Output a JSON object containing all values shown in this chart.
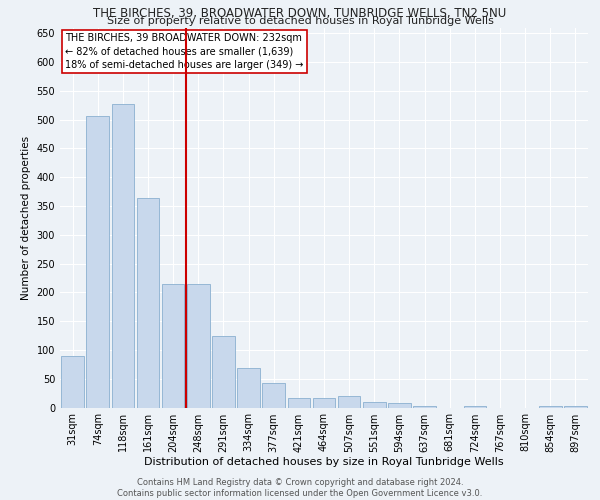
{
  "title": "THE BIRCHES, 39, BROADWATER DOWN, TUNBRIDGE WELLS, TN2 5NU",
  "subtitle": "Size of property relative to detached houses in Royal Tunbridge Wells",
  "xlabel": "Distribution of detached houses by size in Royal Tunbridge Wells",
  "ylabel": "Number of detached properties",
  "categories": [
    "31sqm",
    "74sqm",
    "118sqm",
    "161sqm",
    "204sqm",
    "248sqm",
    "291sqm",
    "334sqm",
    "377sqm",
    "421sqm",
    "464sqm",
    "507sqm",
    "551sqm",
    "594sqm",
    "637sqm",
    "681sqm",
    "724sqm",
    "767sqm",
    "810sqm",
    "854sqm",
    "897sqm"
  ],
  "values": [
    90,
    507,
    527,
    363,
    215,
    215,
    125,
    68,
    42,
    17,
    17,
    20,
    10,
    8,
    3,
    0,
    3,
    0,
    0,
    3,
    2
  ],
  "bar_color": "#c8d8ec",
  "bar_edge_color": "#8ab0d0",
  "marker_color": "#cc0000",
  "annotation_text": "THE BIRCHES, 39 BROADWATER DOWN: 232sqm\n← 82% of detached houses are smaller (1,639)\n18% of semi-detached houses are larger (349) →",
  "annotation_box_color": "#ffffff",
  "annotation_box_edge": "#cc0000",
  "ylim": [
    0,
    660
  ],
  "yticks": [
    0,
    50,
    100,
    150,
    200,
    250,
    300,
    350,
    400,
    450,
    500,
    550,
    600,
    650
  ],
  "background_color": "#edf2f7",
  "grid_color": "#ffffff",
  "footer_text": "Contains HM Land Registry data © Crown copyright and database right 2024.\nContains public sector information licensed under the Open Government Licence v3.0.",
  "title_fontsize": 8.5,
  "subtitle_fontsize": 8,
  "xlabel_fontsize": 8,
  "ylabel_fontsize": 7.5,
  "tick_fontsize": 7,
  "footer_fontsize": 6,
  "annotation_fontsize": 7
}
